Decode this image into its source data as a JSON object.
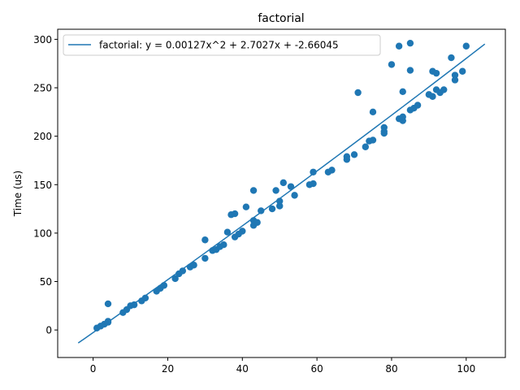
{
  "chart_data": {
    "type": "scatter",
    "title": "factorial",
    "xlabel": "",
    "ylabel": "Time (us)",
    "xlim": [
      -9.5,
      110.5
    ],
    "ylim": [
      -28.4,
      310.4
    ],
    "xticks": [
      0,
      20,
      40,
      60,
      80,
      100
    ],
    "yticks": [
      0,
      50,
      100,
      150,
      200,
      250,
      300
    ],
    "grid": false,
    "legend_position": "upper-left",
    "colors": {
      "series": "#1f77b4",
      "frame": "#000000",
      "background": "#ffffff"
    },
    "series": [
      {
        "name": "",
        "kind": "scatter",
        "points": [
          [
            1,
            2
          ],
          [
            2,
            4
          ],
          [
            3,
            6
          ],
          [
            4,
            8
          ],
          [
            4,
            9
          ],
          [
            4,
            27
          ],
          [
            8,
            18
          ],
          [
            9,
            21
          ],
          [
            10,
            25
          ],
          [
            11,
            26
          ],
          [
            13,
            30
          ],
          [
            14,
            33
          ],
          [
            17,
            40
          ],
          [
            18,
            43
          ],
          [
            19,
            46
          ],
          [
            22,
            53
          ],
          [
            23,
            58
          ],
          [
            24,
            61
          ],
          [
            26,
            65
          ],
          [
            27,
            67
          ],
          [
            30,
            74
          ],
          [
            30,
            93
          ],
          [
            32,
            82
          ],
          [
            33,
            83
          ],
          [
            34,
            86
          ],
          [
            35,
            88
          ],
          [
            36,
            101
          ],
          [
            37,
            119
          ],
          [
            38,
            120
          ],
          [
            38,
            96
          ],
          [
            39,
            99
          ],
          [
            40,
            102
          ],
          [
            41,
            127
          ],
          [
            43,
            108
          ],
          [
            43,
            113
          ],
          [
            43,
            144
          ],
          [
            44,
            111
          ],
          [
            45,
            123
          ],
          [
            48,
            125
          ],
          [
            49,
            144
          ],
          [
            50,
            128
          ],
          [
            50,
            133
          ],
          [
            51,
            152
          ],
          [
            53,
            148
          ],
          [
            54,
            139
          ],
          [
            58,
            150
          ],
          [
            59,
            151
          ],
          [
            59,
            163
          ],
          [
            63,
            163
          ],
          [
            64,
            165
          ],
          [
            68,
            176
          ],
          [
            68,
            179
          ],
          [
            70,
            181
          ],
          [
            71,
            245
          ],
          [
            73,
            189
          ],
          [
            74,
            195
          ],
          [
            75,
            196
          ],
          [
            75,
            225
          ],
          [
            78,
            203
          ],
          [
            78,
            205
          ],
          [
            78,
            209
          ],
          [
            80,
            274
          ],
          [
            82,
            218
          ],
          [
            82,
            293
          ],
          [
            83,
            216
          ],
          [
            83,
            220
          ],
          [
            83,
            246
          ],
          [
            85,
            227
          ],
          [
            85,
            268
          ],
          [
            85,
            296
          ],
          [
            86,
            229
          ],
          [
            87,
            232
          ],
          [
            90,
            243
          ],
          [
            91,
            241
          ],
          [
            91,
            267
          ],
          [
            92,
            248
          ],
          [
            92,
            265
          ],
          [
            93,
            245
          ],
          [
            94,
            248
          ],
          [
            96,
            281
          ],
          [
            97,
            258
          ],
          [
            97,
            263
          ],
          [
            99,
            267
          ],
          [
            100,
            293
          ]
        ]
      },
      {
        "name": "factorial: y = 0.00127x^2 + 2.7027x + -2.66045",
        "kind": "line",
        "formula": {
          "a": 0.00127,
          "b": 2.7027,
          "c": -2.66045
        },
        "x_range": [
          -4,
          105
        ]
      }
    ]
  }
}
